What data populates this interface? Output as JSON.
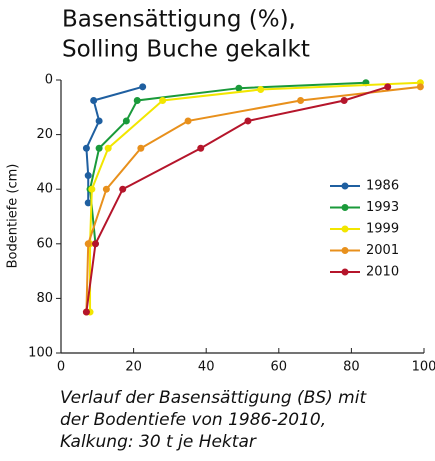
{
  "chart_data": {
    "type": "line",
    "title": [
      "Basensättigung (%),",
      "Solling Buche gekalkt"
    ],
    "ylabel": "Bodentiefe (cm)",
    "caption": [
      "Verlauf der Basensättigung (BS) mit",
      "der Bodentiefe von 1986-2010,",
      "Kalkung: 30 t je Hektar"
    ],
    "xlim": [
      0,
      100
    ],
    "xticks": [
      0,
      20,
      40,
      60,
      80,
      100
    ],
    "ylim": [
      0,
      100
    ],
    "yticks": [
      0,
      20,
      40,
      60,
      80,
      100
    ],
    "y_inverted": true,
    "grid": false,
    "legend": "right",
    "series": [
      {
        "name": "1986",
        "color": "#1f5fa0",
        "x": [
          22.5,
          9,
          10.5,
          7,
          7.5,
          7.5
        ],
        "values": [
          2.5,
          7.5,
          15,
          25,
          35,
          45
        ]
      },
      {
        "name": "1993",
        "color": "#1a9a3a",
        "x": [
          84,
          49,
          21,
          18,
          10.5,
          8,
          9.5
        ],
        "values": [
          1,
          3,
          7.5,
          15,
          25,
          40,
          60
        ]
      },
      {
        "name": "1999",
        "color": "#f2e600",
        "x": [
          99,
          55,
          28,
          13,
          8.5,
          8,
          8
        ],
        "values": [
          1,
          3.5,
          7.5,
          25,
          40,
          60,
          85
        ]
      },
      {
        "name": "2001",
        "color": "#e8901c",
        "x": [
          99,
          66,
          35,
          22,
          12.5,
          7.5,
          7
        ],
        "values": [
          2.5,
          7.5,
          15,
          25,
          40,
          60,
          85
        ]
      },
      {
        "name": "2010",
        "color": "#b5152b",
        "x": [
          90,
          78,
          51.5,
          38.5,
          17,
          9.5,
          7
        ],
        "values": [
          2.5,
          7.5,
          15,
          25,
          40,
          60,
          85
        ]
      }
    ]
  }
}
